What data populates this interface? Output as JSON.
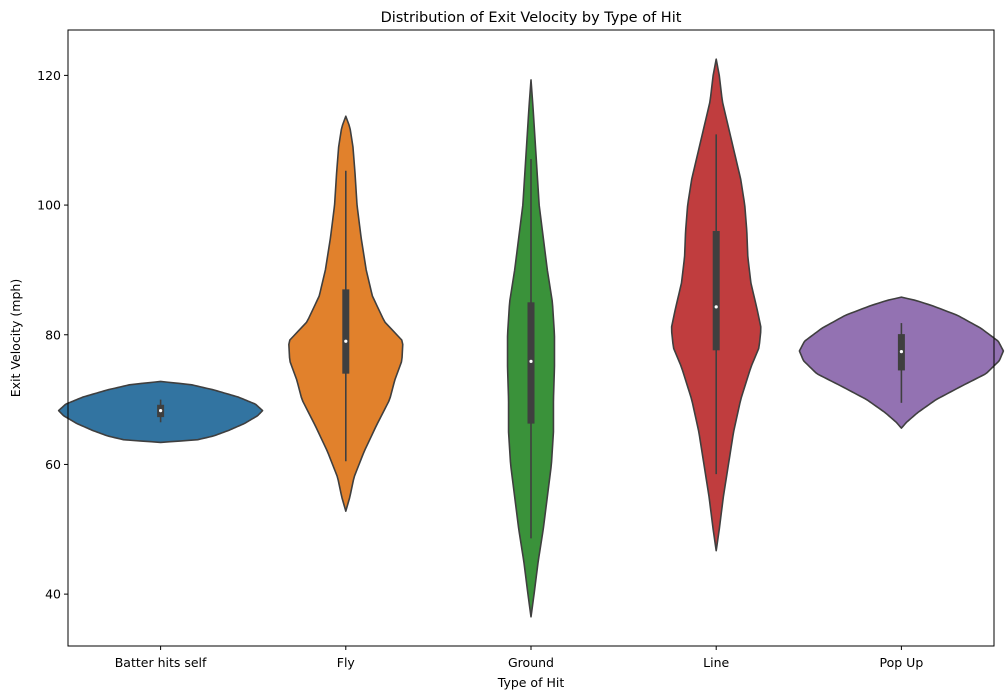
{
  "chart_data": {
    "type": "violin",
    "title": "Distribution of Exit Velocity by Type of Hit",
    "xlabel": "Type of Hit",
    "ylabel": "Exit Velocity (mph)",
    "ylim": [
      32,
      127
    ],
    "yticks": [
      40,
      60,
      80,
      100,
      120
    ],
    "grid": false,
    "legend": "none",
    "categories": [
      "Batter hits self",
      "Fly",
      "Ground",
      "Line",
      "Pop Up"
    ],
    "series": [
      {
        "color": "#3274a1",
        "extent": [
          63.4,
          72.8
        ],
        "box": {
          "q1": 67.3,
          "median": 68.3,
          "q3": 69.2,
          "whisker_low": 66.5,
          "whisker_high": 70.0
        },
        "density": [
          [
            63.4,
            0
          ],
          [
            63.8,
            0.36
          ],
          [
            64.4,
            0.52
          ],
          [
            65.2,
            0.66
          ],
          [
            66.3,
            0.82
          ],
          [
            67.5,
            0.95
          ],
          [
            68.3,
            1.0
          ],
          [
            69.3,
            0.93
          ],
          [
            70.4,
            0.76
          ],
          [
            71.5,
            0.52
          ],
          [
            72.3,
            0.3
          ],
          [
            72.8,
            0
          ]
        ]
      },
      {
        "color": "#e1812c",
        "extent": [
          52.8,
          113.7
        ],
        "box": {
          "q1": 74.0,
          "median": 79.0,
          "q3": 87.0,
          "whisker_low": 60.5,
          "whisker_high": 105.3
        },
        "density": [
          [
            52.8,
            0
          ],
          [
            55,
            0.04
          ],
          [
            58,
            0.08
          ],
          [
            62,
            0.18
          ],
          [
            66,
            0.3
          ],
          [
            70,
            0.43
          ],
          [
            73,
            0.48
          ],
          [
            76,
            0.55
          ],
          [
            79,
            0.56
          ],
          [
            82,
            0.38
          ],
          [
            86,
            0.26
          ],
          [
            90,
            0.2
          ],
          [
            95,
            0.15
          ],
          [
            100,
            0.11
          ],
          [
            105,
            0.09
          ],
          [
            109,
            0.07
          ],
          [
            112,
            0.04
          ],
          [
            113.7,
            0
          ]
        ]
      },
      {
        "color": "#3a923a",
        "extent": [
          36.5,
          119.3
        ],
        "box": {
          "q1": 66.3,
          "median": 75.9,
          "q3": 85.0,
          "whisker_low": 48.6,
          "whisker_high": 107.1
        },
        "density": [
          [
            36.5,
            0
          ],
          [
            40,
            0.03
          ],
          [
            45,
            0.07
          ],
          [
            50,
            0.12
          ],
          [
            55,
            0.16
          ],
          [
            60,
            0.2
          ],
          [
            65,
            0.22
          ],
          [
            70,
            0.22
          ],
          [
            75,
            0.23
          ],
          [
            80,
            0.23
          ],
          [
            85,
            0.21
          ],
          [
            90,
            0.16
          ],
          [
            95,
            0.12
          ],
          [
            100,
            0.08
          ],
          [
            105,
            0.06
          ],
          [
            110,
            0.04
          ],
          [
            115,
            0.02
          ],
          [
            119.3,
            0
          ]
        ]
      },
      {
        "color": "#c03d3e",
        "extent": [
          46.7,
          122.5
        ],
        "box": {
          "q1": 77.6,
          "median": 84.3,
          "q3": 96.0,
          "whisker_low": 58.5,
          "whisker_high": 110.9
        },
        "density": [
          [
            46.7,
            0
          ],
          [
            50,
            0.03
          ],
          [
            55,
            0.07
          ],
          [
            60,
            0.12
          ],
          [
            65,
            0.17
          ],
          [
            70,
            0.24
          ],
          [
            75,
            0.34
          ],
          [
            78,
            0.42
          ],
          [
            81,
            0.44
          ],
          [
            84,
            0.4
          ],
          [
            88,
            0.34
          ],
          [
            92,
            0.31
          ],
          [
            96,
            0.3
          ],
          [
            100,
            0.28
          ],
          [
            104,
            0.24
          ],
          [
            108,
            0.18
          ],
          [
            112,
            0.12
          ],
          [
            116,
            0.06
          ],
          [
            120,
            0.03
          ],
          [
            122.5,
            0
          ]
        ]
      },
      {
        "color": "#9372b2",
        "extent": [
          65.6,
          85.8
        ],
        "box": {
          "q1": 74.5,
          "median": 77.4,
          "q3": 80.1,
          "whisker_low": 69.5,
          "whisker_high": 81.8
        },
        "density": [
          [
            65.6,
            0
          ],
          [
            66.5,
            0.05
          ],
          [
            68,
            0.16
          ],
          [
            70,
            0.34
          ],
          [
            72,
            0.58
          ],
          [
            74,
            0.83
          ],
          [
            76,
            0.96
          ],
          [
            77.5,
            1.0
          ],
          [
            79,
            0.95
          ],
          [
            81,
            0.78
          ],
          [
            83,
            0.55
          ],
          [
            84.5,
            0.3
          ],
          [
            85.3,
            0.14
          ],
          [
            85.8,
            0
          ]
        ]
      }
    ]
  }
}
